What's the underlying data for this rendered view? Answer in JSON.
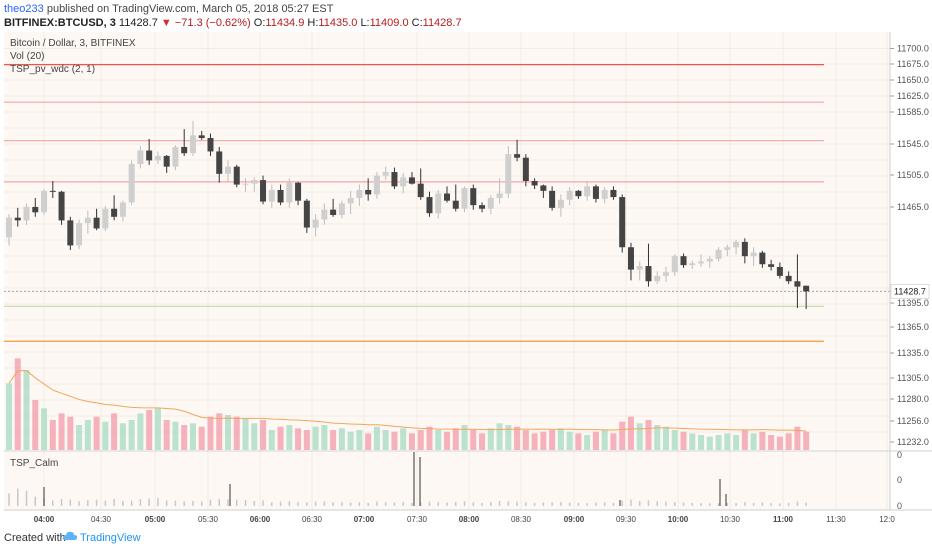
{
  "header": {
    "author": "theo233",
    "published_text": "published on TradingView.com, March 05, 2018 05:27 EST",
    "symbol": "BITFINEX:BTCUSD, 3",
    "close_value": "11428.7",
    "change": "−71.3 (−0.62%)",
    "o_label": "O:",
    "o_value": "11434.9",
    "h_label": "H:",
    "h_value": "11435.0",
    "l_label": "L:",
    "l_value": "11409.0",
    "c_label": "C:",
    "c_value": "11428.7"
  },
  "legend": {
    "title": "Bitcoin / Dollar, 3, BITFINEX",
    "vol": "Vol (20)",
    "indicator": "TSP_pv_wdc (2, 1)",
    "calm": "TSP_Calm"
  },
  "footer": {
    "created": "Created with",
    "brand": "TradingView"
  },
  "colors": {
    "up": "#cfcfcf",
    "down": "#444444",
    "vol_up": "#b2dfcb",
    "vol_down": "#f4a8b6",
    "bg": "#fdf8f3",
    "red_line": "#ef5350"
  },
  "chart_data": {
    "type": "candlestick",
    "price_axis": {
      "ticks": [
        "11700.0",
        "11675.0",
        "11650.0",
        "11625.0",
        "11585.0",
        "11545.0",
        "11505.0",
        "11465.0",
        "11428.7",
        "11395.0",
        "11365.0",
        "11335.0",
        "11305.0",
        "11280.0",
        "11256.0",
        "11232.0"
      ],
      "last_price": "11428.7"
    },
    "time_axis": [
      "04:00",
      "04:30",
      "05:00",
      "05:30",
      "06:00",
      "06:30",
      "07:00",
      "07:30",
      "08:00",
      "08:30",
      "09:00",
      "09:30",
      "10:00",
      "10:30",
      "11:00",
      "11:30",
      "12:0"
    ],
    "lower_axis": [
      "0",
      "0",
      "0"
    ],
    "horizontal_levels": [
      {
        "price": 11682,
        "color": "#ef5350"
      },
      {
        "price": 11640,
        "color": "#f5a5a5"
      },
      {
        "price": 11597,
        "color": "#f5a5a5"
      },
      {
        "price": 11551,
        "color": "#f5a5a5"
      },
      {
        "price": 11412,
        "color": "#c8d9a8"
      },
      {
        "price": 11373,
        "color": "#f29b3a"
      }
    ],
    "candles": [
      [
        11489,
        11515,
        11480,
        11511
      ],
      [
        11511,
        11522,
        11501,
        11508
      ],
      [
        11508,
        11527,
        11503,
        11523
      ],
      [
        11523,
        11533,
        11512,
        11517
      ],
      [
        11517,
        11543,
        11514,
        11541
      ],
      [
        11541,
        11552,
        11533,
        11540
      ],
      [
        11540,
        11541,
        11503,
        11508
      ],
      [
        11508,
        11512,
        11475,
        11480
      ],
      [
        11480,
        11509,
        11476,
        11505
      ],
      [
        11505,
        11519,
        11493,
        11511
      ],
      [
        11511,
        11521,
        11497,
        11499
      ],
      [
        11499,
        11524,
        11496,
        11521
      ],
      [
        11521,
        11536,
        11508,
        11512
      ],
      [
        11512,
        11530,
        11507,
        11528
      ],
      [
        11528,
        11575,
        11525,
        11571
      ],
      [
        11571,
        11591,
        11566,
        11586
      ],
      [
        11586,
        11599,
        11570,
        11575
      ],
      [
        11575,
        11585,
        11571,
        11580
      ],
      [
        11580,
        11581,
        11561,
        11568
      ],
      [
        11568,
        11592,
        11564,
        11590
      ],
      [
        11590,
        11610,
        11580,
        11583
      ],
      [
        11583,
        11619,
        11580,
        11603
      ],
      [
        11603,
        11608,
        11598,
        11600
      ],
      [
        11600,
        11605,
        11580,
        11585
      ],
      [
        11585,
        11590,
        11550,
        11560
      ],
      [
        11560,
        11575,
        11551,
        11568
      ],
      [
        11568,
        11570,
        11545,
        11548
      ],
      [
        11548,
        11555,
        11540,
        11549
      ],
      [
        11549,
        11556,
        11540,
        11553
      ],
      [
        11553,
        11558,
        11526,
        11529
      ],
      [
        11529,
        11548,
        11522,
        11542
      ],
      [
        11542,
        11548,
        11525,
        11528
      ],
      [
        11528,
        11555,
        11522,
        11550
      ],
      [
        11550,
        11551,
        11525,
        11530
      ],
      [
        11530,
        11532,
        11494,
        11500
      ],
      [
        11500,
        11515,
        11490,
        11509
      ],
      [
        11509,
        11527,
        11503,
        11520
      ],
      [
        11520,
        11532,
        11512,
        11514
      ],
      [
        11514,
        11530,
        11510,
        11527
      ],
      [
        11527,
        11541,
        11515,
        11533
      ],
      [
        11533,
        11548,
        11524,
        11542
      ],
      [
        11542,
        11555,
        11530,
        11537
      ],
      [
        11537,
        11562,
        11532,
        11558
      ],
      [
        11558,
        11568,
        11553,
        11562
      ],
      [
        11562,
        11567,
        11543,
        11546
      ],
      [
        11546,
        11561,
        11538,
        11556
      ],
      [
        11556,
        11562,
        11548,
        11549
      ],
      [
        11549,
        11566,
        11531,
        11534
      ],
      [
        11534,
        11540,
        11512,
        11516
      ],
      [
        11516,
        11542,
        11510,
        11538
      ],
      [
        11538,
        11546,
        11528,
        11530
      ],
      [
        11530,
        11548,
        11518,
        11521
      ],
      [
        11521,
        11546,
        11517,
        11544
      ],
      [
        11544,
        11548,
        11520,
        11525
      ],
      [
        11525,
        11528,
        11517,
        11521
      ],
      [
        11521,
        11536,
        11515,
        11533
      ],
      [
        11533,
        11555,
        11527,
        11538
      ],
      [
        11538,
        11591,
        11533,
        11582
      ],
      [
        11582,
        11598,
        11574,
        11578
      ],
      [
        11578,
        11582,
        11546,
        11552
      ],
      [
        11552,
        11555,
        11543,
        11547
      ],
      [
        11547,
        11548,
        11533,
        11541
      ],
      [
        11541,
        11546,
        11519,
        11522
      ],
      [
        11522,
        11537,
        11512,
        11531
      ],
      [
        11531,
        11545,
        11525,
        11541
      ],
      [
        11541,
        11542,
        11532,
        11535
      ],
      [
        11535,
        11552,
        11530,
        11546
      ],
      [
        11546,
        11548,
        11528,
        11532
      ],
      [
        11532,
        11545,
        11527,
        11542
      ],
      [
        11542,
        11546,
        11531,
        11534
      ],
      [
        11534,
        11537,
        11472,
        11478
      ],
      [
        11478,
        11483,
        11441,
        11453
      ],
      [
        11453,
        11462,
        11441,
        11457
      ],
      [
        11457,
        11482,
        11434,
        11440
      ],
      [
        11440,
        11451,
        11437,
        11446
      ],
      [
        11446,
        11456,
        11439,
        11450
      ],
      [
        11450,
        11470,
        11446,
        11468
      ],
      [
        11468,
        11471,
        11455,
        11458
      ],
      [
        11458,
        11463,
        11454,
        11460
      ],
      [
        11460,
        11470,
        11456,
        11462
      ],
      [
        11462,
        11468,
        11455,
        11465
      ],
      [
        11465,
        11478,
        11462,
        11475
      ],
      [
        11475,
        11481,
        11468,
        11478
      ],
      [
        11478,
        11486,
        11470,
        11484
      ],
      [
        11484,
        11488,
        11460,
        11468
      ],
      [
        11468,
        11478,
        11457,
        11472
      ],
      [
        11472,
        11474,
        11455,
        11459
      ],
      [
        11459,
        11464,
        11452,
        11456
      ],
      [
        11456,
        11461,
        11443,
        11446
      ],
      [
        11446,
        11451,
        11437,
        11440
      ],
      [
        11440,
        11470,
        11410,
        11434
      ],
      [
        11435,
        11435,
        11409,
        11428.7
      ]
    ],
    "volumes": [
      40,
      55,
      48,
      30,
      25,
      18,
      22,
      20,
      15,
      18,
      20,
      17,
      22,
      16,
      18,
      22,
      24,
      25,
      18,
      17,
      15,
      16,
      14,
      20,
      22,
      21,
      20,
      19,
      16,
      18,
      12,
      14,
      15,
      13,
      12,
      14,
      15,
      12,
      13,
      11,
      12,
      10,
      14,
      12,
      11,
      13,
      10,
      12,
      14,
      12,
      11,
      13,
      15,
      12,
      10,
      13,
      16,
      15,
      14,
      12,
      10,
      11,
      12,
      13,
      11,
      10,
      9,
      11,
      12,
      10,
      17,
      20,
      16,
      18,
      15,
      14,
      12,
      11,
      10,
      9,
      8,
      9,
      10,
      9,
      12,
      10,
      11,
      9,
      8,
      10,
      14,
      11
    ]
  }
}
